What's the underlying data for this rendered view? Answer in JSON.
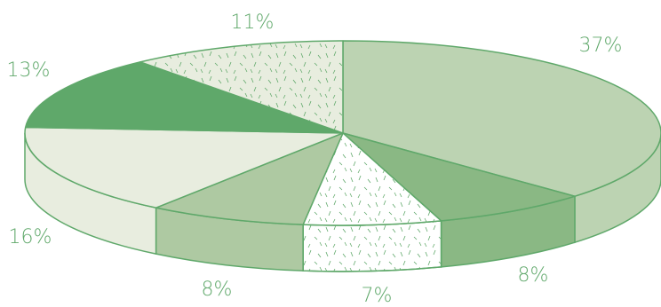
{
  "chart_data": {
    "type": "pie",
    "title": "",
    "slices": [
      {
        "label": "37%",
        "value": 37,
        "color": "#bcd3b2",
        "wall": "#bcd3b2",
        "pattern": false
      },
      {
        "label": "8%",
        "value": 8,
        "color": "#8ab884",
        "wall": "#8ab884",
        "pattern": false
      },
      {
        "label": "7%",
        "value": 7,
        "color": "#ffffff",
        "wall": "#ffffff",
        "pattern": true
      },
      {
        "label": "8%",
        "value": 8,
        "color": "#aec9a2",
        "wall": "#aec9a2",
        "pattern": false
      },
      {
        "label": "16%",
        "value": 16,
        "color": "#e8eddf",
        "wall": "#e8eddf",
        "pattern": false
      },
      {
        "label": "13%",
        "value": 13,
        "color": "#5fa86a",
        "wall": "#5fa86a",
        "pattern": false
      },
      {
        "label": "11%",
        "value": 11,
        "color": "#e8eddf",
        "wall": "#e8eddf",
        "pattern": true
      }
    ],
    "edge_color": "#5fa86a",
    "label_color": "#5fa86a",
    "legend": "none"
  }
}
